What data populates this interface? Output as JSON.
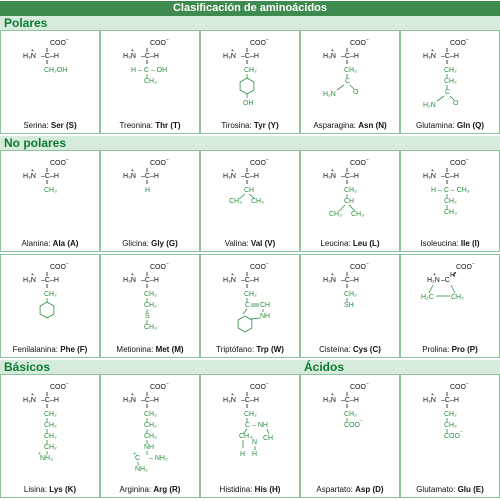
{
  "title": "Clasificación de aminoácidos",
  "colors": {
    "header": "#3f8b4f",
    "section_bg": "#d7ebdc",
    "section_text": "#0d7a33",
    "cell_border": "#8fc39d",
    "side_chain": "#2a8f3f"
  },
  "core_labels": {
    "carboxyl": "COO",
    "amine": "H₃N",
    "carbon": "–C–H",
    "minus": "−",
    "plus": "+"
  },
  "sections": {
    "polares": "Polares",
    "no_polares": "No polares",
    "basicos": "Básicos",
    "acidos": "Ácidos"
  },
  "amino_acids": [
    {
      "name": "Serina: ",
      "abbr": "Ser (S)",
      "side": [
        "CH₂OH"
      ]
    },
    {
      "name": "Treonina: ",
      "abbr": "Thr (T)",
      "side": [
        "H – C – OH",
        "CH₃"
      ]
    },
    {
      "name": "Tirosina: ",
      "abbr": "Tyr (Y)",
      "side": [
        "CH₂",
        "ring",
        "OH"
      ]
    },
    {
      "name": "Asparagina: ",
      "abbr": "Asn (N)",
      "side": [
        "CH₂",
        "C",
        "H₂N",
        "O"
      ]
    },
    {
      "name": "Glutamina: ",
      "abbr": "Gln (Q)",
      "side": [
        "CH₂",
        "CH₂",
        "C",
        "H₂N",
        "O"
      ]
    },
    {
      "name": "Alanina: ",
      "abbr": "Ala (A)",
      "side": [
        "CH₃"
      ]
    },
    {
      "name": "Glicina: ",
      "abbr": "Gly (G)",
      "side": [
        "H"
      ]
    },
    {
      "name": "Valina: ",
      "abbr": "Val (V)",
      "side": [
        "CH",
        "CH₃",
        "CH₃"
      ]
    },
    {
      "name": "Leucina: ",
      "abbr": "Leu (L)",
      "side": [
        "CH₂",
        "CH",
        "CH₃",
        "CH₃"
      ]
    },
    {
      "name": "Isoleucina: ",
      "abbr": "Ile (I)",
      "side": [
        "H – C – CH₃",
        "CH₂",
        "CH₃"
      ]
    },
    {
      "name": "Fenilalanina: ",
      "abbr": "Phe (F)",
      "side": [
        "CH₂",
        "ring"
      ]
    },
    {
      "name": "Metionina: ",
      "abbr": "Met (M)",
      "side": [
        "CH₂",
        "CH₂",
        "S",
        "CH₃"
      ]
    },
    {
      "name": "Triptófano: ",
      "abbr": "Trp (W)",
      "side": [
        "CH₂",
        "C",
        "CH",
        "NH"
      ]
    },
    {
      "name": "Cisteína: ",
      "abbr": "Cys (C)",
      "side": [
        "CH₂",
        "SH"
      ]
    },
    {
      "name": "Prolina: ",
      "abbr": "Pro (P)",
      "side": [
        "H₂N",
        "C",
        "H",
        "CH₂",
        "H₂C",
        "CH₂"
      ]
    },
    {
      "name": "Lisina: ",
      "abbr": "Lys (K)",
      "side": [
        "CH₂",
        "CH₂",
        "CH₂",
        "CH₂",
        "NH₃"
      ]
    },
    {
      "name": "Arginina: ",
      "abbr": "Arg (R)",
      "side": [
        "CH₂",
        "CH₂",
        "CH₂",
        "NH",
        "C",
        "NH₂",
        "NH₂"
      ]
    },
    {
      "name": "Histidina: ",
      "abbr": "His (H)",
      "side": [
        "CH₂",
        "C",
        "NH",
        "CH",
        "N",
        "H",
        "CH"
      ]
    },
    {
      "name": "Aspartato: ",
      "abbr": "Asp (D)",
      "side": [
        "CH₂",
        "COO"
      ]
    },
    {
      "name": "Glutamato: ",
      "abbr": "Glu (E)",
      "side": [
        "CH₂",
        "CH₂",
        "COO"
      ]
    }
  ]
}
